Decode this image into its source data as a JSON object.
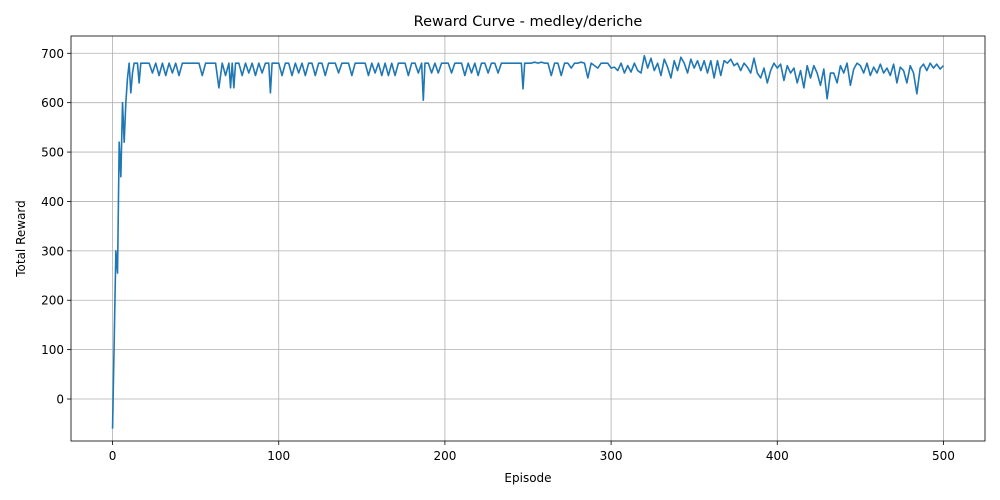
{
  "chart_data": {
    "type": "line",
    "title": "Reward Curve - medley/deriche",
    "xlabel": "Episode",
    "ylabel": "Total Reward",
    "xlim": [
      -25,
      525
    ],
    "ylim": [
      -85,
      735
    ],
    "xticks": [
      0,
      100,
      200,
      300,
      400,
      500
    ],
    "yticks": [
      0,
      100,
      200,
      300,
      400,
      500,
      600,
      700
    ],
    "grid": true,
    "series": [
      {
        "color": "#1f77b4",
        "points": [
          [
            0,
            -60
          ],
          [
            1,
            120
          ],
          [
            2,
            300
          ],
          [
            3,
            255
          ],
          [
            4,
            520
          ],
          [
            5,
            450
          ],
          [
            6,
            600
          ],
          [
            7,
            520
          ],
          [
            8,
            600
          ],
          [
            9,
            650
          ],
          [
            10,
            680
          ],
          [
            11,
            620
          ],
          [
            12,
            660
          ],
          [
            13,
            680
          ],
          [
            14,
            680
          ],
          [
            15,
            680
          ],
          [
            16,
            640
          ],
          [
            17,
            680
          ],
          [
            18,
            680
          ],
          [
            19,
            680
          ],
          [
            20,
            680
          ],
          [
            22,
            680
          ],
          [
            24,
            660
          ],
          [
            26,
            680
          ],
          [
            28,
            655
          ],
          [
            30,
            680
          ],
          [
            32,
            655
          ],
          [
            34,
            680
          ],
          [
            36,
            660
          ],
          [
            38,
            680
          ],
          [
            40,
            655
          ],
          [
            42,
            680
          ],
          [
            44,
            680
          ],
          [
            46,
            680
          ],
          [
            48,
            680
          ],
          [
            50,
            680
          ],
          [
            52,
            680
          ],
          [
            54,
            655
          ],
          [
            56,
            680
          ],
          [
            58,
            680
          ],
          [
            60,
            680
          ],
          [
            62,
            680
          ],
          [
            64,
            630
          ],
          [
            66,
            680
          ],
          [
            68,
            655
          ],
          [
            70,
            680
          ],
          [
            71,
            630
          ],
          [
            72,
            680
          ],
          [
            73,
            630
          ],
          [
            74,
            680
          ],
          [
            76,
            680
          ],
          [
            78,
            655
          ],
          [
            80,
            680
          ],
          [
            82,
            660
          ],
          [
            84,
            680
          ],
          [
            86,
            655
          ],
          [
            88,
            680
          ],
          [
            90,
            660
          ],
          [
            92,
            680
          ],
          [
            94,
            680
          ],
          [
            95,
            620
          ],
          [
            96,
            680
          ],
          [
            98,
            680
          ],
          [
            100,
            680
          ],
          [
            102,
            655
          ],
          [
            104,
            680
          ],
          [
            106,
            680
          ],
          [
            108,
            655
          ],
          [
            110,
            680
          ],
          [
            112,
            660
          ],
          [
            114,
            680
          ],
          [
            116,
            655
          ],
          [
            118,
            680
          ],
          [
            120,
            680
          ],
          [
            122,
            655
          ],
          [
            124,
            680
          ],
          [
            126,
            680
          ],
          [
            128,
            655
          ],
          [
            130,
            680
          ],
          [
            132,
            680
          ],
          [
            134,
            680
          ],
          [
            136,
            660
          ],
          [
            138,
            680
          ],
          [
            140,
            680
          ],
          [
            142,
            680
          ],
          [
            144,
            655
          ],
          [
            146,
            680
          ],
          [
            148,
            680
          ],
          [
            150,
            680
          ],
          [
            152,
            680
          ],
          [
            154,
            655
          ],
          [
            156,
            680
          ],
          [
            158,
            660
          ],
          [
            160,
            680
          ],
          [
            162,
            655
          ],
          [
            164,
            680
          ],
          [
            166,
            655
          ],
          [
            168,
            680
          ],
          [
            170,
            655
          ],
          [
            172,
            680
          ],
          [
            174,
            680
          ],
          [
            176,
            680
          ],
          [
            178,
            655
          ],
          [
            180,
            680
          ],
          [
            182,
            680
          ],
          [
            184,
            660
          ],
          [
            186,
            680
          ],
          [
            187,
            605
          ],
          [
            188,
            680
          ],
          [
            190,
            680
          ],
          [
            192,
            660
          ],
          [
            194,
            680
          ],
          [
            196,
            660
          ],
          [
            198,
            680
          ],
          [
            200,
            680
          ],
          [
            202,
            680
          ],
          [
            204,
            660
          ],
          [
            206,
            680
          ],
          [
            208,
            680
          ],
          [
            210,
            680
          ],
          [
            212,
            655
          ],
          [
            214,
            680
          ],
          [
            216,
            660
          ],
          [
            218,
            680
          ],
          [
            220,
            655
          ],
          [
            222,
            680
          ],
          [
            224,
            680
          ],
          [
            226,
            660
          ],
          [
            228,
            680
          ],
          [
            230,
            680
          ],
          [
            232,
            660
          ],
          [
            234,
            680
          ],
          [
            236,
            680
          ],
          [
            238,
            680
          ],
          [
            240,
            680
          ],
          [
            242,
            680
          ],
          [
            244,
            680
          ],
          [
            246,
            680
          ],
          [
            247,
            628
          ],
          [
            248,
            680
          ],
          [
            250,
            680
          ],
          [
            252,
            680
          ],
          [
            254,
            682
          ],
          [
            256,
            680
          ],
          [
            258,
            682
          ],
          [
            260,
            680
          ],
          [
            262,
            680
          ],
          [
            264,
            655
          ],
          [
            266,
            680
          ],
          [
            268,
            680
          ],
          [
            270,
            655
          ],
          [
            272,
            680
          ],
          [
            274,
            680
          ],
          [
            276,
            670
          ],
          [
            278,
            680
          ],
          [
            280,
            680
          ],
          [
            282,
            682
          ],
          [
            284,
            680
          ],
          [
            286,
            650
          ],
          [
            288,
            680
          ],
          [
            290,
            675
          ],
          [
            292,
            670
          ],
          [
            294,
            680
          ],
          [
            296,
            680
          ],
          [
            298,
            680
          ],
          [
            300,
            670
          ],
          [
            302,
            672
          ],
          [
            304,
            665
          ],
          [
            306,
            680
          ],
          [
            308,
            660
          ],
          [
            310,
            675
          ],
          [
            312,
            662
          ],
          [
            314,
            680
          ],
          [
            316,
            665
          ],
          [
            318,
            660
          ],
          [
            320,
            695
          ],
          [
            322,
            670
          ],
          [
            324,
            690
          ],
          [
            326,
            665
          ],
          [
            328,
            680
          ],
          [
            330,
            655
          ],
          [
            332,
            688
          ],
          [
            334,
            672
          ],
          [
            336,
            650
          ],
          [
            338,
            685
          ],
          [
            340,
            665
          ],
          [
            342,
            692
          ],
          [
            344,
            680
          ],
          [
            346,
            660
          ],
          [
            348,
            688
          ],
          [
            350,
            670
          ],
          [
            352,
            685
          ],
          [
            354,
            665
          ],
          [
            356,
            685
          ],
          [
            358,
            660
          ],
          [
            360,
            685
          ],
          [
            362,
            650
          ],
          [
            364,
            685
          ],
          [
            366,
            655
          ],
          [
            368,
            685
          ],
          [
            370,
            680
          ],
          [
            372,
            688
          ],
          [
            374,
            675
          ],
          [
            376,
            680
          ],
          [
            378,
            665
          ],
          [
            380,
            680
          ],
          [
            382,
            672
          ],
          [
            384,
            660
          ],
          [
            386,
            690
          ],
          [
            388,
            660
          ],
          [
            390,
            650
          ],
          [
            392,
            670
          ],
          [
            394,
            640
          ],
          [
            396,
            665
          ],
          [
            398,
            680
          ],
          [
            400,
            670
          ],
          [
            402,
            678
          ],
          [
            404,
            645
          ],
          [
            406,
            675
          ],
          [
            408,
            660
          ],
          [
            410,
            670
          ],
          [
            412,
            640
          ],
          [
            414,
            665
          ],
          [
            416,
            630
          ],
          [
            418,
            675
          ],
          [
            420,
            650
          ],
          [
            422,
            675
          ],
          [
            424,
            660
          ],
          [
            426,
            635
          ],
          [
            428,
            668
          ],
          [
            430,
            608
          ],
          [
            432,
            660
          ],
          [
            434,
            660
          ],
          [
            436,
            640
          ],
          [
            438,
            675
          ],
          [
            440,
            660
          ],
          [
            442,
            680
          ],
          [
            444,
            635
          ],
          [
            446,
            668
          ],
          [
            448,
            680
          ],
          [
            450,
            675
          ],
          [
            452,
            660
          ],
          [
            454,
            680
          ],
          [
            456,
            655
          ],
          [
            458,
            672
          ],
          [
            460,
            660
          ],
          [
            462,
            678
          ],
          [
            464,
            660
          ],
          [
            466,
            670
          ],
          [
            468,
            655
          ],
          [
            470,
            678
          ],
          [
            472,
            640
          ],
          [
            474,
            672
          ],
          [
            476,
            665
          ],
          [
            478,
            640
          ],
          [
            480,
            675
          ],
          [
            482,
            660
          ],
          [
            484,
            618
          ],
          [
            486,
            670
          ],
          [
            488,
            678
          ],
          [
            490,
            665
          ],
          [
            492,
            680
          ],
          [
            494,
            670
          ],
          [
            496,
            678
          ],
          [
            498,
            668
          ],
          [
            500,
            675
          ]
        ]
      }
    ]
  }
}
